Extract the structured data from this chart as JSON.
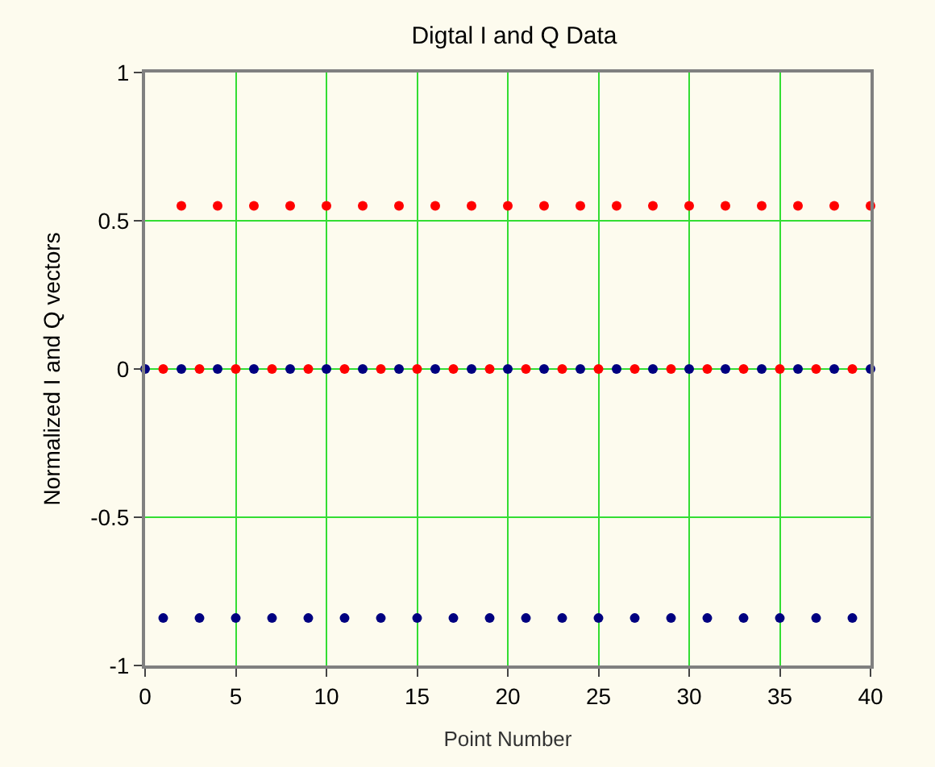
{
  "chart_data": {
    "type": "scatter",
    "title": "Digtal I and Q Data",
    "xlabel": "Point Number",
    "ylabel": "Normalized I and Q vectors",
    "series": [
      {
        "color": "#ff0000",
        "x": [
          1,
          2,
          3,
          4,
          5,
          6,
          7,
          8,
          9,
          10,
          11,
          12,
          13,
          14,
          15,
          16,
          17,
          18,
          19,
          20,
          21,
          22,
          23,
          24,
          25,
          26,
          27,
          28,
          29,
          30,
          31,
          32,
          33,
          34,
          35,
          36,
          37,
          38,
          39,
          40
        ],
        "values": [
          0,
          0.55,
          0,
          0.55,
          0,
          0.55,
          0,
          0.55,
          0,
          0.55,
          0,
          0.55,
          0,
          0.55,
          0,
          0.55,
          0,
          0.55,
          0,
          0.55,
          0,
          0.55,
          0,
          0.55,
          0,
          0.55,
          0,
          0.55,
          0,
          0.55,
          0,
          0.55,
          0,
          0.55,
          0,
          0.55,
          0,
          0.55,
          0,
          0.55
        ]
      },
      {
        "color": "#000080",
        "x": [
          0,
          1,
          2,
          3,
          4,
          5,
          6,
          7,
          8,
          9,
          10,
          11,
          12,
          13,
          14,
          15,
          16,
          17,
          18,
          19,
          20,
          21,
          22,
          23,
          24,
          25,
          26,
          27,
          28,
          29,
          30,
          31,
          32,
          33,
          34,
          35,
          36,
          37,
          38,
          39,
          40
        ],
        "values": [
          0,
          -0.84,
          0,
          -0.84,
          0,
          -0.84,
          0,
          -0.84,
          0,
          -0.84,
          0,
          -0.84,
          0,
          -0.84,
          0,
          -0.84,
          0,
          -0.84,
          0,
          -0.84,
          0,
          -0.84,
          0,
          -0.84,
          0,
          -0.84,
          0,
          -0.84,
          0,
          -0.84,
          0,
          -0.84,
          0,
          -0.84,
          0,
          -0.84,
          0,
          -0.84,
          0,
          -0.84,
          0
        ]
      }
    ],
    "xlim": [
      0,
      40
    ],
    "xticks": [
      0,
      5,
      10,
      15,
      20,
      25,
      30,
      35,
      40
    ],
    "ylim": [
      -1,
      1
    ],
    "yticks": [
      -1,
      -0.5,
      0,
      0.5,
      1
    ],
    "grid": true,
    "marker": "circle"
  }
}
